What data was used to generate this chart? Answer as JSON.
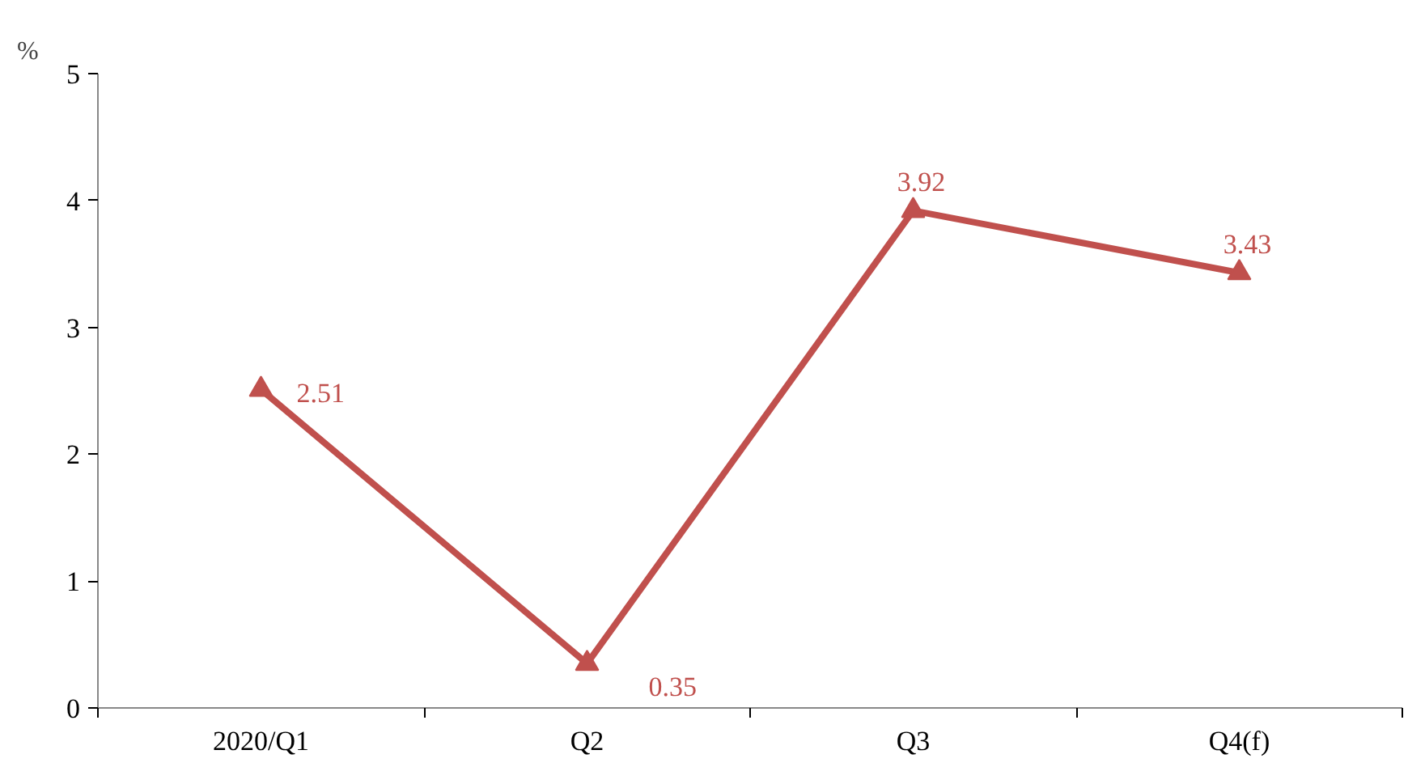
{
  "chart_data": {
    "type": "line",
    "ylabel": "%",
    "categories": [
      "2020/Q1",
      "Q2",
      "Q3",
      "Q4(f)"
    ],
    "series": [
      {
        "color": "#c0504d",
        "values": [
          2.51,
          0.35,
          3.92,
          3.43
        ]
      }
    ],
    "ylim": [
      0,
      5
    ],
    "yticks": [
      0,
      1,
      2,
      3,
      4,
      5
    ],
    "grid": false,
    "marker": "triangle",
    "line_style": "solid",
    "data_labels": true
  }
}
